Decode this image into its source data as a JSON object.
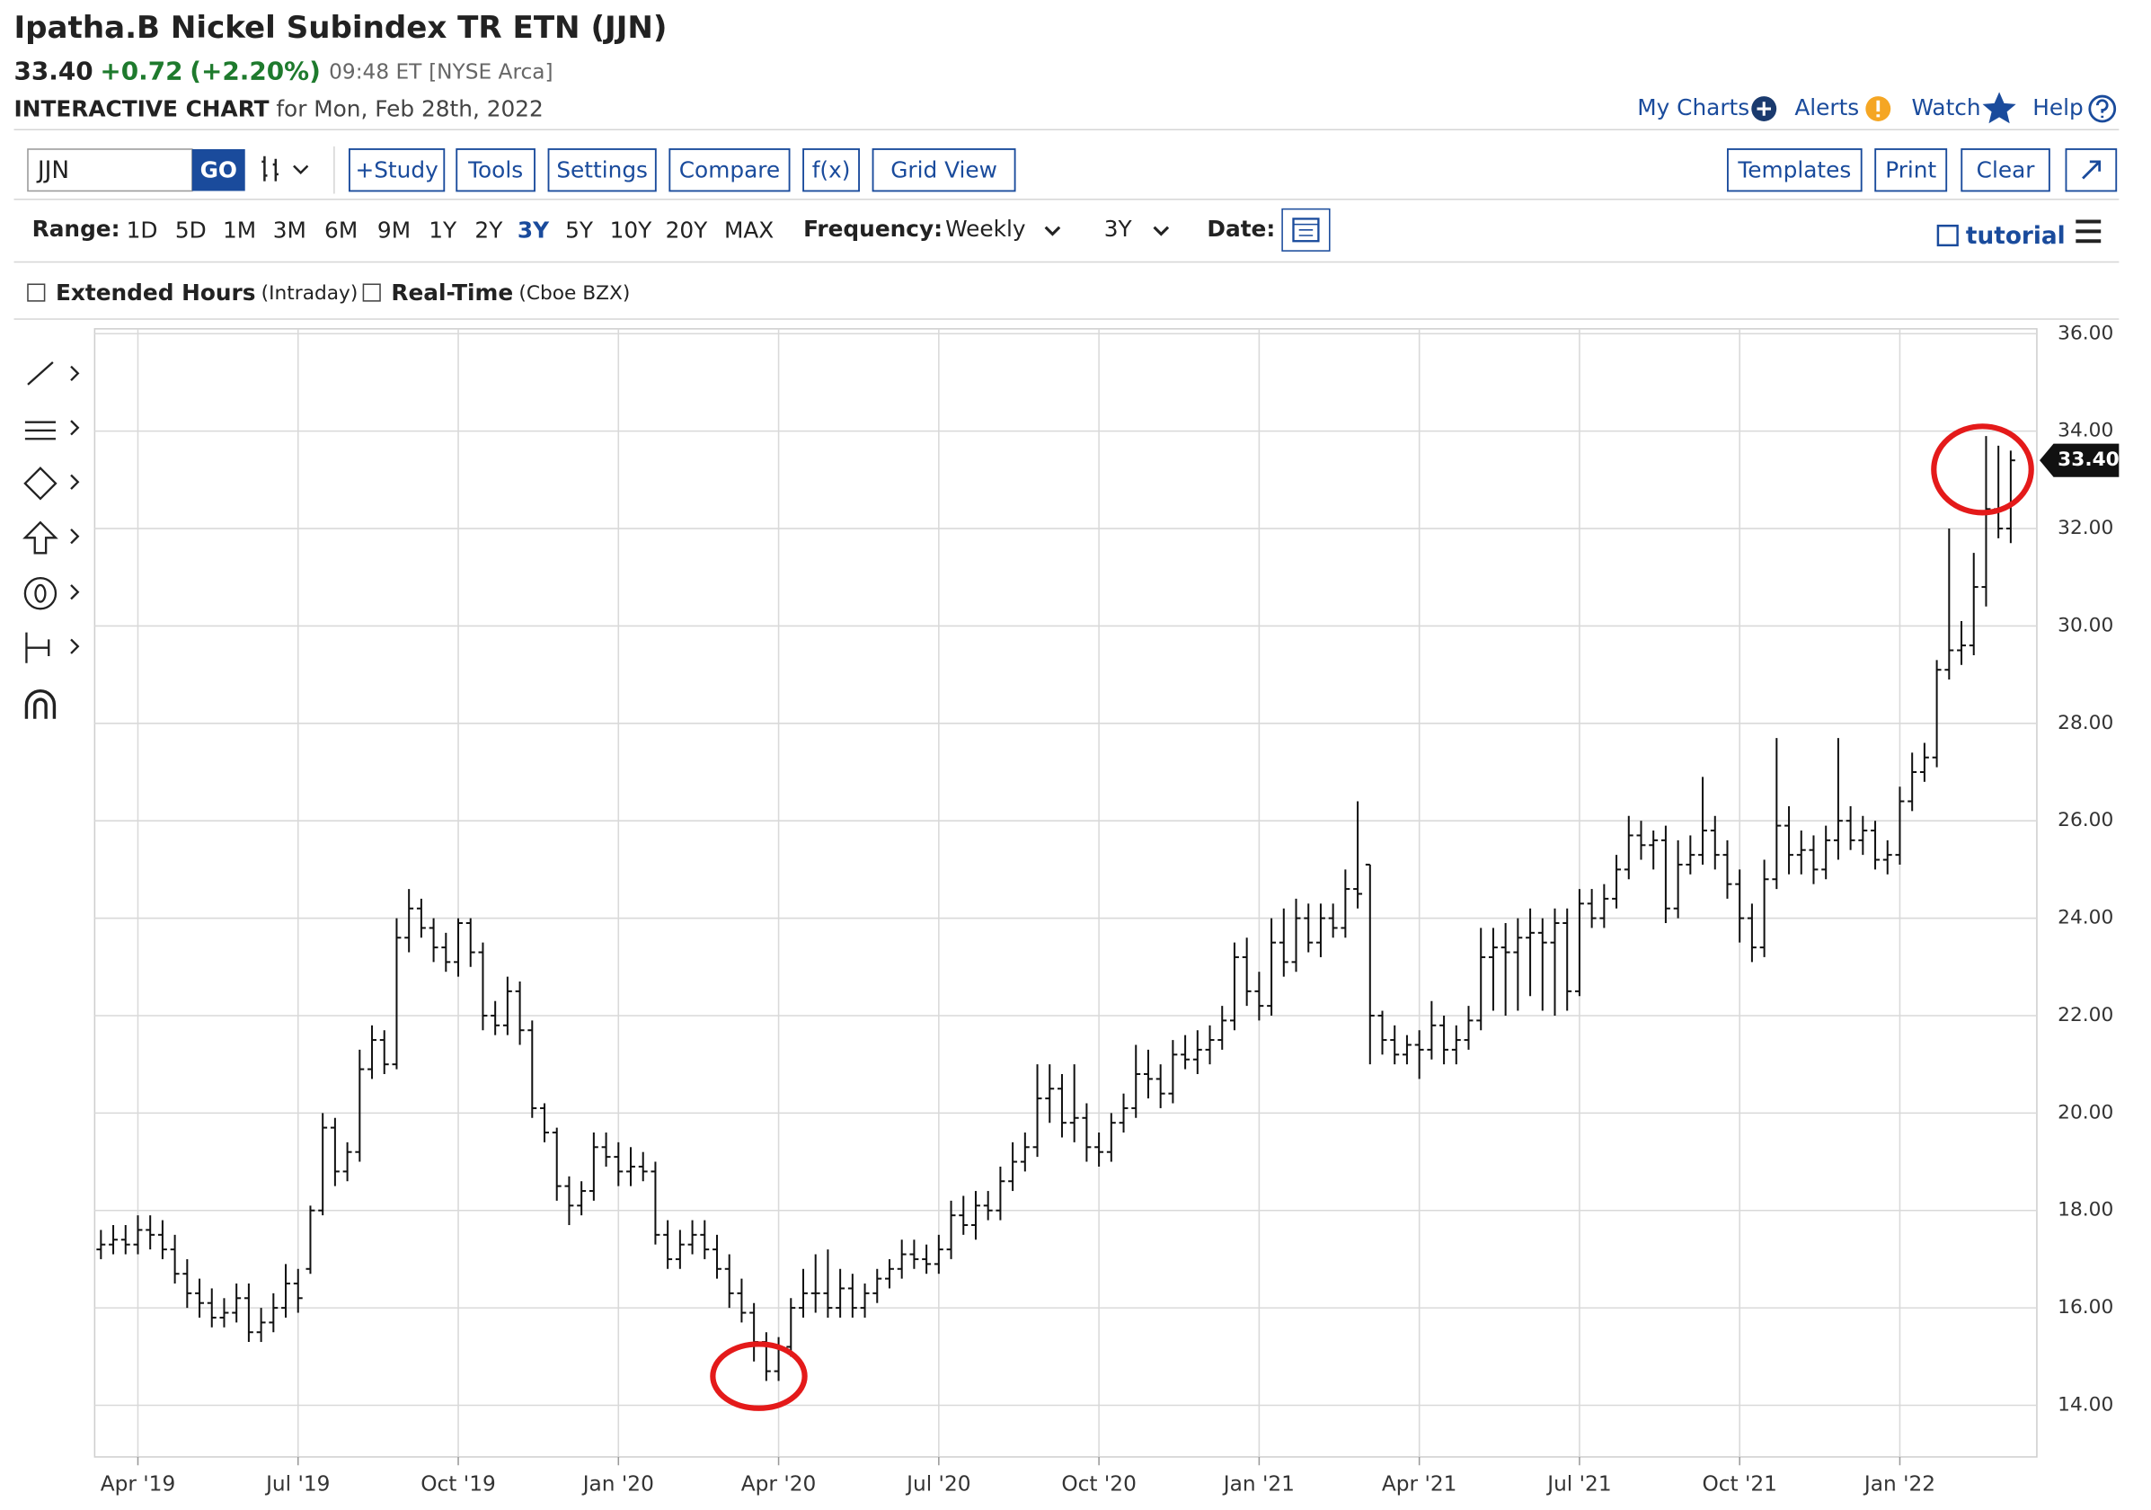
{
  "header": {
    "title": "Ipatha.B Nickel Subindex TR ETN (JJN)",
    "price": "33.40",
    "change": "+0.72",
    "change_pct": "(+2.20%)",
    "time": "09:48 ET",
    "exchange": "[NYSE Arca]",
    "chart_label": "INTERACTIVE CHART",
    "for_date": "for Mon, Feb 28th, 2022"
  },
  "links": [
    "My Charts",
    "Alerts",
    "Watch",
    "Help"
  ],
  "toolbar": {
    "symbol": "JJN",
    "go": "GO",
    "buttons": [
      "+Study",
      "Tools",
      "Settings",
      "Compare",
      "f(x)",
      "Grid View"
    ],
    "right_buttons": [
      "Templates",
      "Print",
      "Clear"
    ]
  },
  "range_bar": {
    "range_label": "Range:",
    "ranges": [
      "1D",
      "5D",
      "1M",
      "3M",
      "6M",
      "9M",
      "1Y",
      "2Y",
      "3Y",
      "5Y",
      "10Y",
      "20Y",
      "MAX"
    ],
    "active_range": "3Y",
    "frequency_label": "Frequency:",
    "frequency": "Weekly",
    "period": "3Y",
    "date_label": "Date:",
    "tutorial": "tutorial"
  },
  "options": {
    "extended": "Extended Hours",
    "extended_note": "(Intraday)",
    "realtime": "Real-Time",
    "realtime_note": "(Cboe BZX)"
  },
  "chart_data": {
    "type": "ohlc",
    "color": "#111111",
    "grid": true,
    "last_price_label": "33.40",
    "last_price_color": "#111111",
    "highlight_color": "#e41a1a",
    "categories": [
      null,
      null,
      null,
      "Apr '19",
      null,
      null,
      null,
      null,
      null,
      null,
      null,
      null,
      null,
      null,
      null,
      null,
      "Jul '19",
      null,
      null,
      null,
      null,
      null,
      null,
      null,
      null,
      null,
      null,
      null,
      null,
      "Oct '19",
      null,
      null,
      null,
      null,
      null,
      null,
      null,
      null,
      null,
      null,
      null,
      null,
      "Jan '20",
      null,
      null,
      null,
      null,
      null,
      null,
      null,
      null,
      null,
      null,
      null,
      null,
      "Apr '20",
      null,
      null,
      null,
      null,
      null,
      null,
      null,
      null,
      null,
      null,
      null,
      null,
      "Jul '20",
      null,
      null,
      null,
      null,
      null,
      null,
      null,
      null,
      null,
      null,
      null,
      null,
      "Oct '20",
      null,
      null,
      null,
      null,
      null,
      null,
      null,
      null,
      null,
      null,
      null,
      null,
      "Jan '21",
      null,
      null,
      null,
      null,
      null,
      null,
      null,
      null,
      null,
      null,
      null,
      null,
      "Apr '21",
      null,
      null,
      null,
      null,
      null,
      null,
      null,
      null,
      null,
      null,
      null,
      null,
      "Jul '21",
      null,
      null,
      null,
      null,
      null,
      null,
      null,
      null,
      null,
      null,
      null,
      null,
      "Oct '21",
      null,
      null,
      null,
      null,
      null,
      null,
      null,
      null,
      null,
      null,
      null,
      null,
      "Jan '22",
      null,
      null,
      null,
      null,
      null,
      null,
      null,
      null,
      null
    ],
    "open": [
      17.2,
      17.3,
      17.4,
      17.3,
      17.6,
      17.5,
      17.2,
      16.7,
      16.3,
      16.1,
      15.8,
      15.9,
      16.2,
      15.5,
      15.7,
      16.0,
      16.5,
      16.8,
      18.0,
      19.7,
      18.8,
      19.2,
      20.9,
      21.5,
      21.0,
      23.6,
      24.2,
      23.8,
      23.4,
      23.1,
      23.9,
      23.3,
      22.0,
      21.8,
      22.5,
      21.7,
      20.1,
      19.6,
      18.5,
      18.1,
      18.4,
      19.3,
      19.1,
      18.8,
      18.9,
      18.8,
      17.5,
      17.0,
      17.3,
      17.5,
      17.2,
      16.8,
      16.3,
      15.9,
      15.3,
      14.7,
      15.2,
      16.0,
      16.3,
      16.3,
      16.0,
      16.4,
      16.0,
      16.3,
      16.6,
      16.8,
      17.1,
      17.0,
      16.9,
      17.2,
      17.9,
      17.7,
      18.1,
      18.0,
      18.6,
      19.0,
      19.3,
      20.3,
      20.5,
      19.8,
      19.9,
      19.3,
      19.2,
      19.8,
      20.1,
      20.8,
      20.7,
      20.4,
      21.2,
      21.1,
      21.3,
      21.5,
      21.9,
      23.2,
      22.5,
      22.2,
      23.5,
      23.1,
      24.0,
      23.5,
      24.0,
      23.8,
      24.6,
      25.1,
      22.0,
      21.5,
      21.2,
      21.4,
      21.3,
      21.8,
      21.3,
      21.5,
      21.9,
      23.2,
      23.4,
      23.3,
      23.6,
      23.7,
      23.5,
      23.9,
      22.5,
      24.3,
      24.0,
      24.4,
      25.0,
      25.7,
      25.5,
      25.6,
      24.2,
      25.1,
      25.3,
      25.8,
      25.3,
      24.7,
      24.0,
      23.4,
      24.8,
      25.9,
      25.3,
      25.4,
      25.0,
      25.6,
      26.0,
      25.6,
      25.8,
      25.2,
      25.3,
      26.4,
      27.0,
      27.3,
      29.1,
      29.5,
      29.6,
      30.8,
      32.4,
      32.0
    ],
    "high": [
      17.6,
      17.7,
      17.7,
      17.9,
      17.9,
      17.8,
      17.5,
      17.0,
      16.6,
      16.4,
      16.2,
      16.5,
      16.5,
      16.0,
      16.3,
      16.9,
      16.8,
      18.1,
      20.0,
      19.9,
      19.4,
      21.3,
      21.8,
      21.7,
      24.0,
      24.6,
      24.4,
      24.0,
      23.7,
      24.0,
      24.0,
      23.5,
      22.3,
      22.8,
      22.7,
      21.9,
      20.2,
      19.7,
      18.7,
      18.6,
      19.6,
      19.6,
      19.4,
      19.3,
      19.2,
      19.0,
      17.8,
      17.6,
      17.8,
      17.8,
      17.5,
      17.1,
      16.6,
      16.1,
      15.5,
      15.4,
      16.2,
      16.8,
      17.1,
      17.2,
      16.8,
      16.7,
      16.5,
      16.8,
      17.0,
      17.4,
      17.4,
      17.3,
      17.5,
      18.2,
      18.3,
      18.4,
      18.4,
      18.9,
      19.4,
      19.6,
      21.0,
      21.0,
      20.8,
      21.0,
      20.2,
      19.6,
      20.0,
      20.4,
      21.4,
      21.3,
      21.0,
      21.5,
      21.6,
      21.7,
      21.8,
      22.2,
      23.5,
      23.6,
      22.9,
      24.0,
      24.2,
      24.4,
      24.3,
      24.3,
      24.3,
      25.0,
      26.4,
      25.1,
      22.1,
      21.8,
      21.6,
      21.7,
      22.3,
      22.0,
      21.8,
      22.2,
      23.8,
      23.8,
      23.9,
      24.0,
      24.2,
      24.0,
      24.2,
      24.2,
      24.6,
      24.6,
      24.7,
      25.3,
      26.1,
      26.0,
      25.8,
      25.9,
      25.6,
      25.7,
      26.9,
      26.1,
      25.6,
      25.0,
      24.3,
      25.2,
      27.7,
      26.3,
      25.8,
      25.7,
      25.9,
      27.7,
      26.3,
      26.1,
      26.0,
      25.6,
      26.7,
      27.4,
      27.6,
      29.3,
      32.0,
      30.1,
      31.5,
      33.9,
      33.7,
      33.6
    ],
    "low": [
      17.0,
      17.1,
      17.1,
      17.1,
      17.2,
      17.0,
      16.5,
      16.0,
      15.8,
      15.6,
      15.6,
      15.7,
      15.3,
      15.3,
      15.5,
      15.8,
      15.9,
      16.7,
      17.9,
      18.5,
      18.6,
      19.0,
      20.7,
      20.8,
      20.9,
      23.3,
      23.6,
      23.1,
      22.9,
      22.8,
      23.0,
      21.7,
      21.6,
      21.6,
      21.4,
      19.9,
      19.4,
      18.2,
      17.7,
      17.9,
      18.2,
      18.9,
      18.5,
      18.5,
      18.6,
      17.3,
      16.8,
      16.8,
      17.1,
      17.0,
      16.6,
      16.0,
      15.7,
      14.9,
      14.5,
      14.5,
      15.0,
      15.8,
      15.9,
      15.8,
      15.8,
      15.8,
      15.8,
      16.1,
      16.4,
      16.6,
      16.8,
      16.7,
      16.7,
      17.0,
      17.5,
      17.4,
      17.8,
      17.8,
      18.4,
      18.8,
      19.1,
      19.8,
      19.5,
      19.4,
      19.0,
      18.9,
      19.0,
      19.6,
      19.9,
      20.3,
      20.1,
      20.2,
      20.9,
      20.8,
      21.0,
      21.3,
      21.7,
      22.2,
      21.9,
      22.0,
      22.8,
      22.9,
      23.3,
      23.2,
      23.6,
      23.6,
      24.2,
      21.0,
      21.2,
      21.0,
      21.0,
      20.7,
      21.1,
      21.0,
      21.0,
      21.3,
      21.7,
      22.1,
      22.0,
      22.1,
      22.4,
      22.1,
      22.0,
      22.1,
      22.4,
      23.8,
      23.8,
      24.2,
      24.8,
      25.2,
      25.0,
      23.9,
      24.0,
      24.9,
      25.1,
      25.0,
      24.4,
      23.5,
      23.1,
      23.2,
      24.6,
      24.9,
      24.9,
      24.7,
      24.8,
      25.2,
      25.4,
      25.3,
      25.0,
      24.9,
      25.1,
      26.2,
      26.8,
      27.1,
      28.9,
      29.2,
      29.4,
      30.4,
      31.8,
      31.7
    ],
    "close": [
      17.3,
      17.4,
      17.3,
      17.6,
      17.5,
      17.2,
      16.7,
      16.3,
      16.1,
      15.8,
      15.9,
      16.2,
      15.5,
      15.7,
      16.0,
      16.5,
      16.2,
      18.0,
      19.7,
      18.8,
      19.2,
      20.9,
      21.5,
      21.0,
      23.6,
      24.2,
      23.8,
      23.4,
      23.1,
      23.9,
      23.3,
      22.0,
      21.8,
      22.5,
      21.7,
      20.1,
      19.6,
      18.5,
      18.1,
      18.4,
      19.3,
      19.1,
      18.8,
      18.9,
      18.8,
      17.5,
      17.0,
      17.3,
      17.5,
      17.2,
      16.8,
      16.3,
      15.9,
      15.3,
      14.7,
      15.2,
      16.0,
      16.3,
      16.3,
      16.0,
      16.4,
      16.0,
      16.3,
      16.6,
      16.8,
      17.1,
      17.0,
      16.9,
      17.2,
      17.9,
      17.7,
      18.1,
      18.0,
      18.6,
      19.0,
      19.3,
      20.3,
      20.5,
      19.8,
      19.9,
      19.3,
      19.2,
      19.8,
      20.1,
      20.8,
      20.7,
      20.4,
      21.2,
      21.1,
      21.3,
      21.5,
      21.9,
      23.2,
      22.5,
      22.2,
      23.5,
      23.1,
      24.0,
      23.5,
      24.0,
      23.8,
      24.6,
      24.5,
      22.0,
      21.5,
      21.2,
      21.4,
      21.3,
      21.8,
      21.3,
      21.5,
      21.9,
      23.2,
      23.4,
      23.3,
      23.6,
      23.7,
      23.5,
      23.9,
      22.5,
      24.3,
      24.0,
      24.4,
      25.0,
      25.7,
      25.5,
      25.6,
      24.2,
      25.1,
      25.3,
      25.8,
      25.3,
      24.7,
      24.0,
      23.4,
      24.8,
      25.9,
      25.3,
      25.4,
      25.0,
      25.6,
      26.0,
      25.6,
      25.8,
      25.2,
      25.3,
      26.4,
      27.0,
      27.3,
      29.1,
      29.5,
      29.6,
      30.8,
      32.4,
      32.0,
      33.4
    ],
    "ylim": [
      12.94,
      36.1
    ],
    "yticks": [
      {
        "value": 14,
        "label": "14.00"
      },
      {
        "value": 16,
        "label": "16.00"
      },
      {
        "value": 18,
        "label": "18.00"
      },
      {
        "value": 20,
        "label": "20.00"
      },
      {
        "value": 22,
        "label": "22.00"
      },
      {
        "value": 24,
        "label": "24.00"
      },
      {
        "value": 26,
        "label": "26.00"
      },
      {
        "value": 28,
        "label": "28.00"
      },
      {
        "value": 30,
        "label": "30.00"
      },
      {
        "value": 32,
        "label": "32.00"
      },
      {
        "value": 34,
        "label": "34.00"
      },
      {
        "value": 36,
        "label": "36.00"
      }
    ]
  }
}
